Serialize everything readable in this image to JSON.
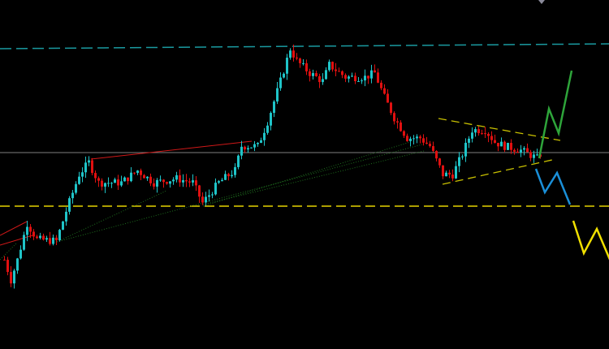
{
  "chart_data": {
    "type": "candlestick",
    "title": "",
    "xlabel": "",
    "ylabel": "",
    "grid": false,
    "legend": "none",
    "price_path_keypoints": [
      [
        1,
        110
      ],
      [
        3,
        85
      ],
      [
        5,
        110
      ],
      [
        8,
        155
      ],
      [
        11,
        135
      ],
      [
        17,
        133
      ],
      [
        20,
        170
      ],
      [
        24,
        215
      ],
      [
        27,
        230
      ],
      [
        30,
        205
      ],
      [
        37,
        205
      ],
      [
        42,
        220
      ],
      [
        47,
        205
      ],
      [
        54,
        210
      ],
      [
        59,
        205
      ],
      [
        62,
        180
      ],
      [
        67,
        205
      ],
      [
        72,
        220
      ],
      [
        74,
        250
      ],
      [
        79,
        250
      ],
      [
        82,
        280
      ],
      [
        86,
        330
      ],
      [
        89,
        370
      ],
      [
        91,
        355
      ],
      [
        95,
        340
      ],
      [
        99,
        330
      ],
      [
        101,
        350
      ],
      [
        106,
        335
      ],
      [
        112,
        335
      ],
      [
        115,
        340
      ],
      [
        118,
        310
      ],
      [
        121,
        285
      ],
      [
        125,
        260
      ],
      [
        129,
        260
      ],
      [
        132,
        250
      ],
      [
        136,
        215
      ],
      [
        139,
        215
      ],
      [
        142,
        240
      ],
      [
        145,
        270
      ],
      [
        149,
        270
      ],
      [
        152,
        255
      ],
      [
        155,
        250
      ],
      [
        160,
        245
      ],
      [
        165,
        235
      ],
      [
        166,
        240
      ]
    ],
    "levels": {
      "resistance_dashed": 370,
      "current_price_line": 242,
      "support_dashed": 176
    },
    "colors": {
      "bull": "#1fc4c8",
      "bear": "#e01010",
      "resistance": "#1a9aa0",
      "current_price": "#808080",
      "support": "#e6d200",
      "triangle": "#c8c000",
      "scenario_up": "#2ea43a",
      "scenario_down": "#1a8fd8",
      "scenario_deep": "#f0e000",
      "trendline": "#d01818",
      "dotted_trend": "#1e6e1e"
    }
  }
}
